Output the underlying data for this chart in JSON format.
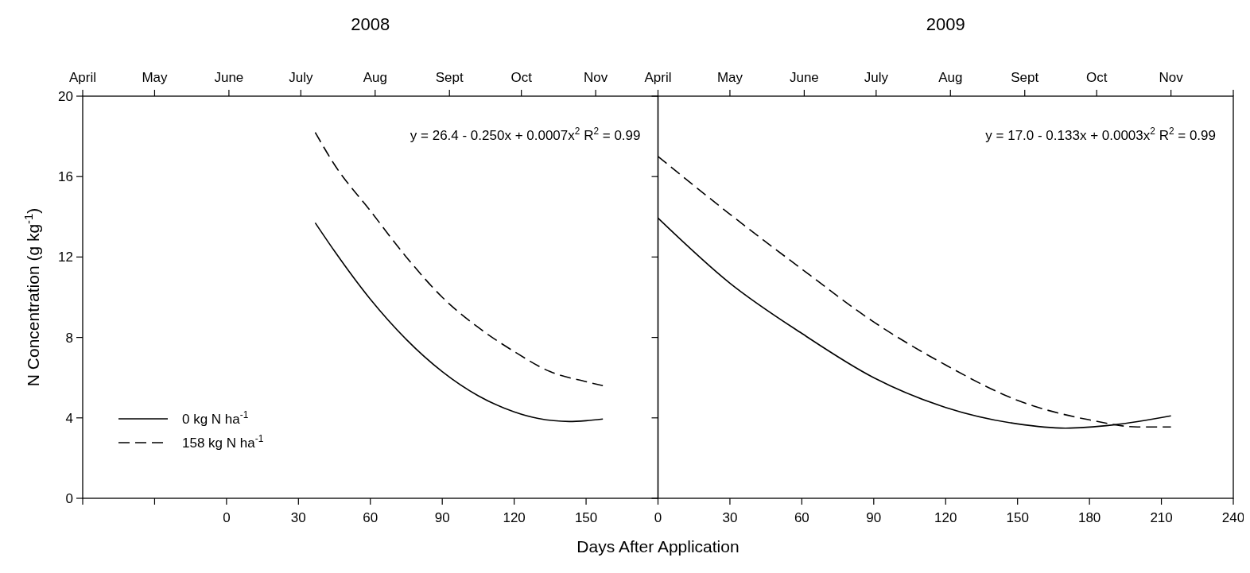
{
  "chart_data": [
    {
      "type": "line",
      "title": "2008",
      "xlabel": "Days After Application",
      "ylabel": "N Concentration (g kg$^{-1}$)",
      "xlim": [
        -60,
        180
      ],
      "xticks": [
        {
          "value": -60,
          "label": null
        },
        {
          "value": -30,
          "label": null
        },
        0,
        30,
        60,
        90,
        120,
        150
      ],
      "x2lim": [
        "--04-01",
        "--11-27"
      ],
      "x2ticks": [
        {
          "value": "--04-01",
          "label": "April"
        },
        {
          "value": "--05-01",
          "label": "May"
        },
        {
          "value": "--06-01",
          "label": "June"
        },
        {
          "value": "--07-01",
          "label": "July"
        },
        {
          "value": "--08-01",
          "label": "Aug"
        },
        {
          "value": "--09-01",
          "label": "Sept"
        },
        {
          "value": "--10-01",
          "label": "Oct"
        },
        {
          "value": "--11-01",
          "label": "Nov"
        }
      ],
      "ylim": [
        0,
        20
      ],
      "yticks": [
        0,
        4,
        8,
        12,
        16,
        20
      ],
      "legend": "bottom left",
      "grid": false,
      "annotations": [
        "y = 26.4 - 0.250x + 0.0007x$^{2}$  R$^{2}$ = 0.99"
      ],
      "series": [
        {
          "name": "0 kg N ha$^{-1}$",
          "color": "#000000",
          "line_style": "solid",
          "x": [
            37,
            45,
            60,
            75,
            90,
            105,
            120,
            130,
            143,
            150,
            157
          ],
          "values": [
            13.7,
            12.3,
            9.9,
            7.9,
            6.3,
            5.1,
            4.3,
            3.97,
            3.82,
            3.86,
            3.94
          ]
        },
        {
          "name": "158 kg N ha$^{-1}$",
          "color": "#000000",
          "line_style": "dashed",
          "x": [
            37,
            45,
            60,
            75,
            90,
            105,
            120,
            135,
            150,
            157
          ],
          "values": [
            18.2,
            16.6,
            14.3,
            12.0,
            10.0,
            8.5,
            7.3,
            6.3,
            5.8,
            5.6
          ]
        }
      ]
    },
    {
      "type": "line",
      "title": "2009",
      "xlim": [
        0,
        240
      ],
      "xticks": [
        0,
        30,
        60,
        90,
        120,
        150,
        180,
        210,
        240
      ],
      "x2lim": [
        "--04-01",
        "--11-27"
      ],
      "x2ticks": [
        {
          "value": "--04-01",
          "label": "April"
        },
        {
          "value": "--05-01",
          "label": "May"
        },
        {
          "value": "--06-01",
          "label": "June"
        },
        {
          "value": "--07-01",
          "label": "July"
        },
        {
          "value": "--08-01",
          "label": "Aug"
        },
        {
          "value": "--09-01",
          "label": "Sept"
        },
        {
          "value": "--10-01",
          "label": "Oct"
        },
        {
          "value": "--11-01",
          "label": "Nov"
        },
        {
          "value": "--11-27",
          "label": null
        }
      ],
      "ylim": [
        0,
        20
      ],
      "yticks": [
        0,
        4,
        8,
        12,
        16,
        20
      ],
      "tick_labels": "x",
      "grid": false,
      "annotations": [
        "y = 17.0 - 0.133x + 0.0003x$^{2}$  R$^{2}$ = 0.99"
      ],
      "series": [
        {
          "color": "#000000",
          "line_style": "solid",
          "x": [
            0,
            30,
            60,
            90,
            120,
            150,
            170,
            190,
            214
          ],
          "values": [
            13.94,
            10.7,
            8.2,
            6.0,
            4.52,
            3.7,
            3.49,
            3.65,
            4.1
          ]
        },
        {
          "color": "#000000",
          "line_style": "dashed",
          "x": [
            0,
            30,
            60,
            90,
            120,
            150,
            180,
            200,
            214
          ],
          "values": [
            17.0,
            14.13,
            11.4,
            8.77,
            6.63,
            4.87,
            3.9,
            3.55,
            3.55
          ]
        }
      ]
    }
  ]
}
